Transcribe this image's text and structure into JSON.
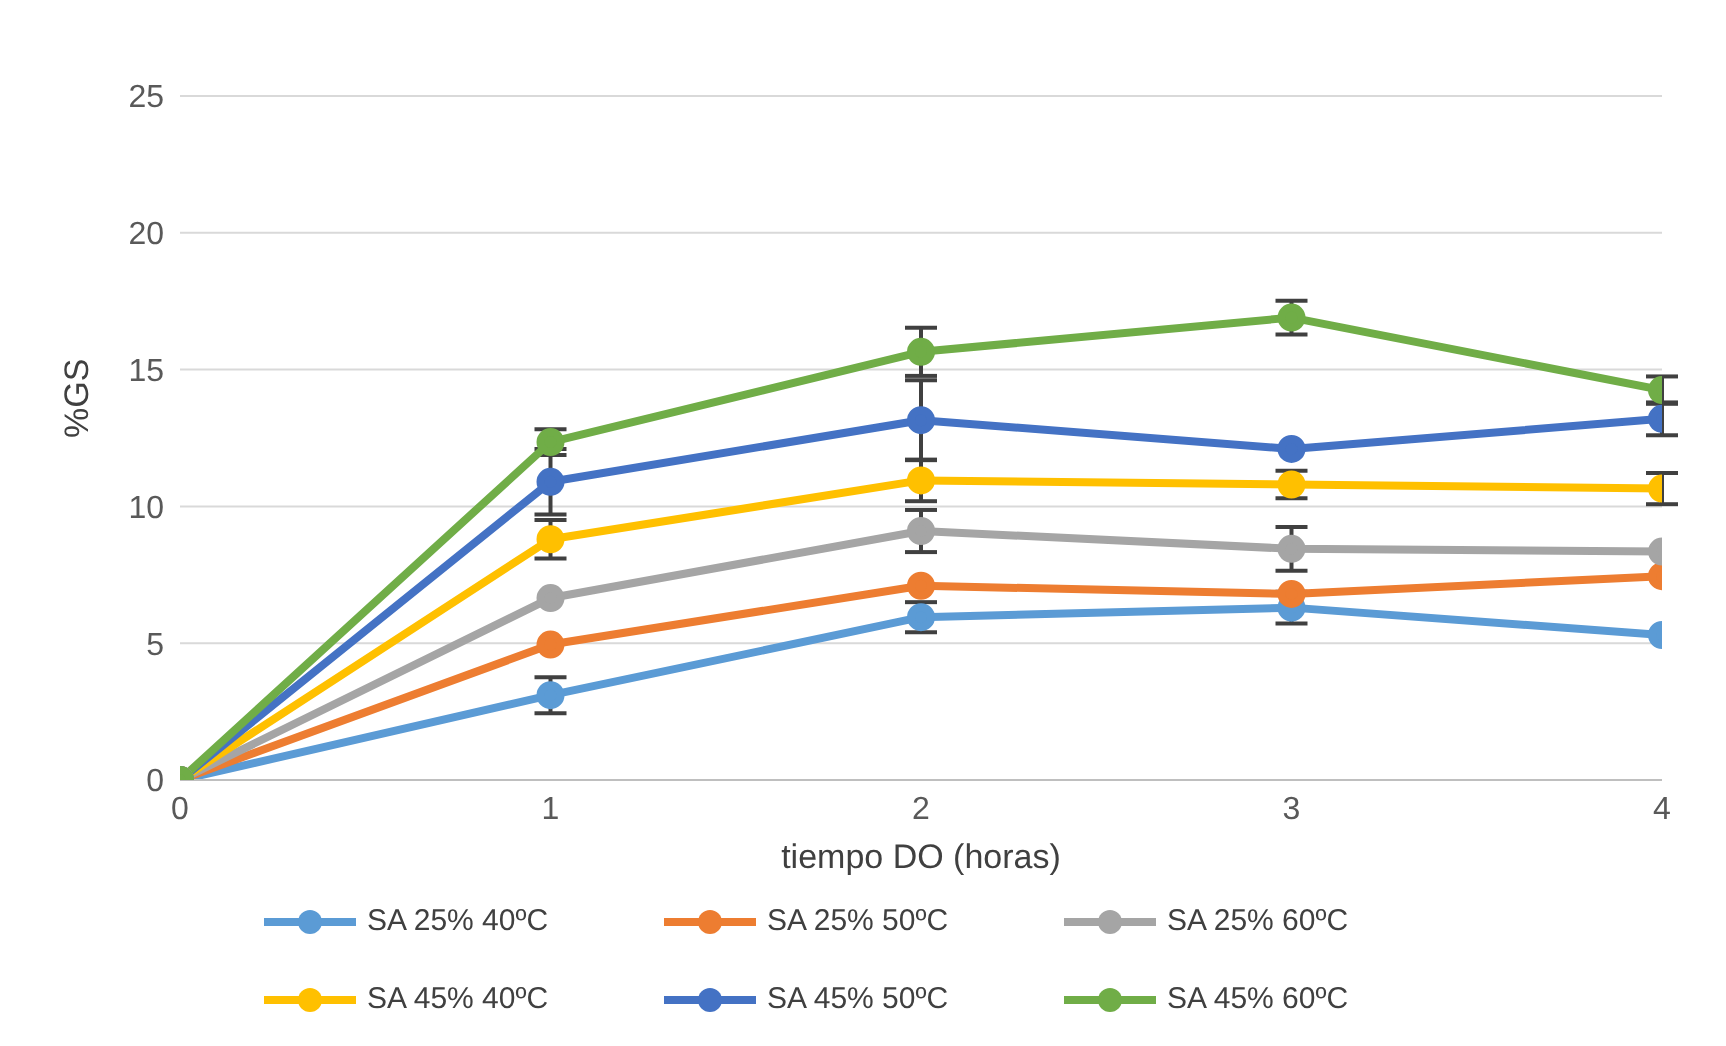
{
  "chart_data": {
    "type": "line",
    "xlabel": "tiempo DO (horas)",
    "ylabel": "%GS",
    "x": [
      0,
      1,
      2,
      3,
      4
    ],
    "xlim": [
      0,
      4
    ],
    "xticks": [
      0,
      1,
      2,
      3,
      4
    ],
    "ylim": [
      0,
      25
    ],
    "yticks": [
      0,
      5,
      10,
      15,
      20,
      25
    ],
    "grid": "y",
    "legend": "bottom",
    "marker": "circle",
    "line_style": "solid",
    "series": [
      {
        "name": "SA 25% 40ºC",
        "color": "#5b9bd5",
        "values": [
          0,
          3.1,
          5.95,
          6.3,
          5.3
        ],
        "errors": [
          null,
          0.66,
          0.55,
          0.58,
          null
        ]
      },
      {
        "name": "SA 25% 50ºC",
        "color": "#ed7d31",
        "values": [
          0,
          4.95,
          7.1,
          6.8,
          7.45
        ],
        "errors": [
          null,
          null,
          null,
          null,
          null
        ]
      },
      {
        "name": "SA 25% 60ºC",
        "color": "#a5a5a5",
        "values": [
          0,
          6.65,
          9.1,
          8.45,
          8.35
        ],
        "errors": [
          null,
          null,
          0.77,
          0.8,
          null
        ]
      },
      {
        "name": "SA 45% 40ºC",
        "color": "#ffc000",
        "values": [
          0,
          8.8,
          10.95,
          10.8,
          10.65
        ],
        "errors": [
          null,
          0.7,
          0.76,
          0.5,
          0.57
        ]
      },
      {
        "name": "SA 45% 50ºC",
        "color": "#4472c4",
        "values": [
          0,
          10.9,
          13.15,
          12.1,
          13.2
        ],
        "errors": [
          null,
          1.2,
          1.46,
          null,
          0.6
        ]
      },
      {
        "name": "SA 45% 60ºC",
        "color": "#70ad47",
        "values": [
          0,
          12.35,
          15.65,
          16.9,
          14.25
        ],
        "errors": [
          null,
          0.47,
          0.88,
          0.62,
          0.5
        ]
      }
    ]
  }
}
